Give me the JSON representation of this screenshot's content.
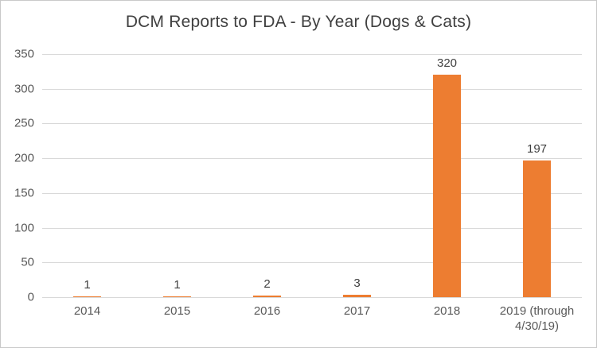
{
  "chart_data": {
    "type": "bar",
    "title": "DCM Reports to FDA - By Year (Dogs & Cats)",
    "categories": [
      "2014",
      "2015",
      "2016",
      "2017",
      "2018",
      "2019 (through 4/30/19)"
    ],
    "values": [
      1,
      1,
      2,
      3,
      320,
      197
    ],
    "data_labels": [
      "1",
      "1",
      "2",
      "3",
      "320",
      "197"
    ],
    "xlabel": "",
    "ylabel": "",
    "ylim": [
      0,
      350
    ],
    "yticks": [
      0,
      50,
      100,
      150,
      200,
      250,
      300,
      350
    ],
    "grid": true,
    "legend_position": "none",
    "bar_color": "#ed7d31",
    "gridline_color": "#d9d9d9",
    "tick_label_color": "#595959",
    "data_label_color": "#404040",
    "title_color": "#404040",
    "background_color": "#ffffff",
    "border_color": "#c9c9c9"
  }
}
